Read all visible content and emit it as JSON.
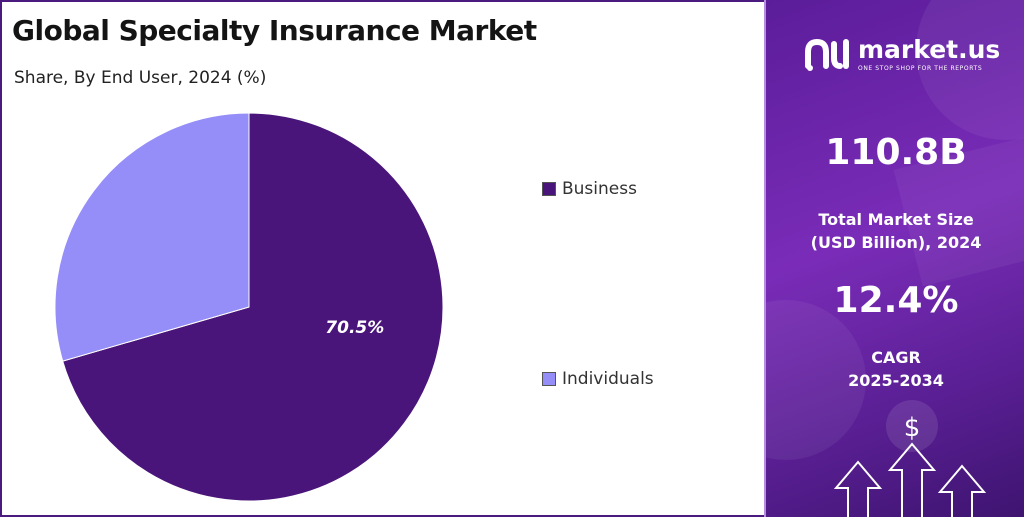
{
  "title": "Global Specialty Insurance Market",
  "subtitle": "Share, By End User, 2024 (%)",
  "chart_data": {
    "type": "pie",
    "categories": [
      "Business",
      "Individuals"
    ],
    "values": [
      70.5,
      29.5
    ],
    "colors": [
      "#4a157a",
      "#958ef8"
    ],
    "data_labels": [
      "70.5%",
      ""
    ],
    "legend_placement": "right"
  },
  "legend": [
    {
      "label": "Business",
      "color": "#4a157a"
    },
    {
      "label": "Individuals",
      "color": "#958ef8"
    }
  ],
  "sidebar": {
    "brand_name": "market.us",
    "brand_tagline": "ONE STOP SHOP FOR THE REPORTS",
    "market_size_value": "110.8B",
    "market_size_label_line1": "Total Market Size",
    "market_size_label_line2": "(USD Billion), 2024",
    "cagr_value": "12.4%",
    "cagr_label_line1": "CAGR",
    "cagr_label_line2": "2025-2034",
    "dollar_symbol": "$"
  }
}
